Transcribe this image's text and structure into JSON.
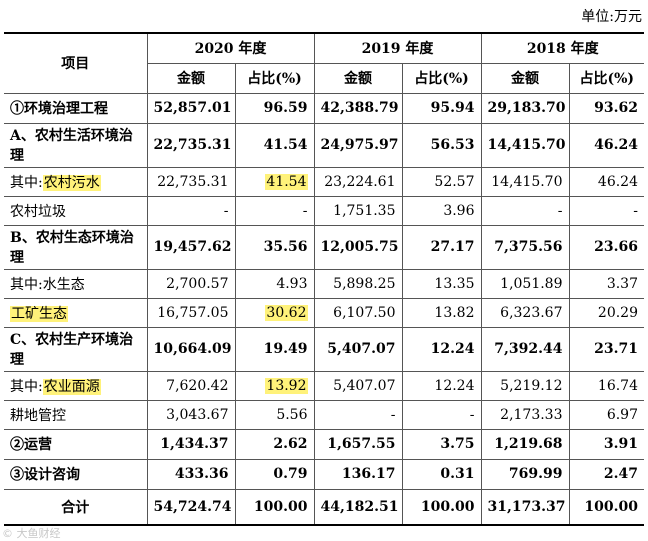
{
  "unit_label": "单位:万元",
  "header": {
    "item": "项目",
    "years": [
      "2020 年度",
      "2019 年度",
      "2018 年度"
    ],
    "amount": "金额",
    "ratio": "占比(%)"
  },
  "rows": [
    {
      "label": "①环境治理工程",
      "bold": true,
      "values": [
        "52,857.01",
        "96.59",
        "42,388.79",
        "95.94",
        "29,183.70",
        "93.62"
      ]
    },
    {
      "label": "A、农村生活环境治理",
      "bold": true,
      "values": [
        "22,735.31",
        "41.54",
        "24,975.97",
        "56.53",
        "14,415.70",
        "46.24"
      ]
    },
    {
      "prefix": "其中:",
      "label": "农村污水",
      "highlight_label": true,
      "highlight_value_index": 1,
      "values": [
        "22,735.31",
        "41.54",
        "23,224.61",
        "52.57",
        "14,415.70",
        "46.24"
      ]
    },
    {
      "label": "农村垃圾",
      "values": [
        "-",
        "-",
        "1,751.35",
        "3.96",
        "-",
        "-"
      ]
    },
    {
      "label": "B、农村生态环境治理",
      "bold": true,
      "values": [
        "19,457.62",
        "35.56",
        "12,005.75",
        "27.17",
        "7,375.56",
        "23.66"
      ]
    },
    {
      "prefix": "其中:",
      "label": "水生态",
      "values": [
        "2,700.57",
        "4.93",
        "5,898.25",
        "13.35",
        "1,051.89",
        "3.37"
      ]
    },
    {
      "label": "工矿生态",
      "highlight_label": true,
      "highlight_value_index": 1,
      "values": [
        "16,757.05",
        "30.62",
        "6,107.50",
        "13.82",
        "6,323.67",
        "20.29"
      ]
    },
    {
      "label": "C、农村生产环境治理",
      "bold": true,
      "values": [
        "10,664.09",
        "19.49",
        "5,407.07",
        "12.24",
        "7,392.44",
        "23.71"
      ]
    },
    {
      "prefix": "其中:",
      "label": "农业面源",
      "highlight_label": true,
      "highlight_value_index": 1,
      "values": [
        "7,620.42",
        "13.92",
        "5,407.07",
        "12.24",
        "5,219.12",
        "16.74"
      ]
    },
    {
      "label": "耕地管控",
      "values": [
        "3,043.67",
        "5.56",
        "-",
        "-",
        "2,173.33",
        "6.97"
      ]
    },
    {
      "label": "②运营",
      "bold": true,
      "values": [
        "1,434.37",
        "2.62",
        "1,657.55",
        "3.75",
        "1,219.68",
        "3.91"
      ]
    },
    {
      "label": "③设计咨询",
      "bold": true,
      "values": [
        "433.36",
        "0.79",
        "136.17",
        "0.31",
        "769.99",
        "2.47"
      ]
    },
    {
      "label": "合计",
      "bold": true,
      "center": true,
      "values": [
        "54,724.74",
        "100.00",
        "44,182.51",
        "100.00",
        "31,173.37",
        "100.00"
      ]
    }
  ],
  "watermark": "© 大鱼财经",
  "colors": {
    "highlight": "#fff27a"
  }
}
